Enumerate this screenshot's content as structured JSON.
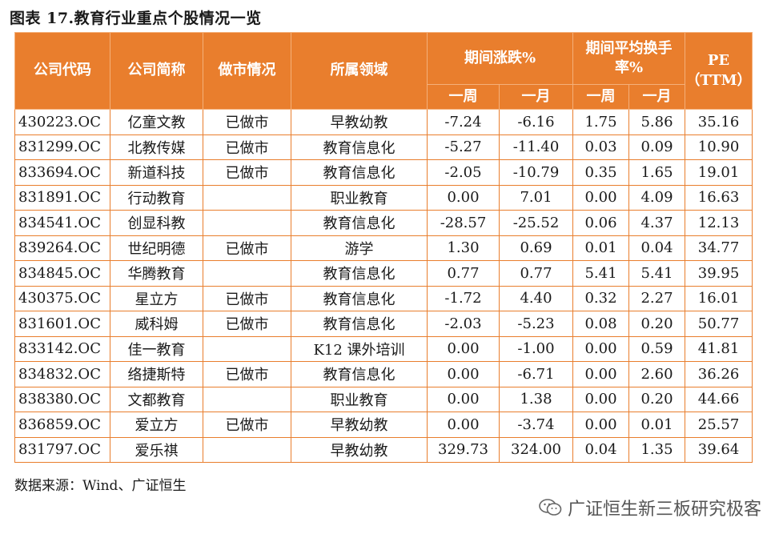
{
  "title": "图表 17.教育行业重点个股情况一览",
  "headers": {
    "code": "公司代码",
    "name": "公司简称",
    "mm": "做市情况",
    "field": "所属领域",
    "change": "期间涨跌%",
    "turnover": "期间平均换手率%",
    "pe": "PE\n（TTM）",
    "week": "一周",
    "month": "一月"
  },
  "rows": [
    {
      "code": "430223.OC",
      "name": "亿童文教",
      "mm": "已做市",
      "field": "早教幼教",
      "c_week": "-7.24",
      "c_month": "-6.16",
      "t_week": "1.75",
      "t_month": "5.86",
      "pe": "35.16"
    },
    {
      "code": "831299.OC",
      "name": "北教传媒",
      "mm": "已做市",
      "field": "教育信息化",
      "c_week": "-5.27",
      "c_month": "-11.40",
      "t_week": "0.03",
      "t_month": "0.09",
      "pe": "10.90"
    },
    {
      "code": "833694.OC",
      "name": "新道科技",
      "mm": "已做市",
      "field": "教育信息化",
      "c_week": "-2.05",
      "c_month": "-10.79",
      "t_week": "0.35",
      "t_month": "1.65",
      "pe": "19.01"
    },
    {
      "code": "831891.OC",
      "name": "行动教育",
      "mm": "",
      "field": "职业教育",
      "c_week": "0.00",
      "c_month": "7.01",
      "t_week": "0.00",
      "t_month": "4.09",
      "pe": "16.63"
    },
    {
      "code": "834541.OC",
      "name": "创显科教",
      "mm": "",
      "field": "教育信息化",
      "c_week": "-28.57",
      "c_month": "-25.52",
      "t_week": "0.06",
      "t_month": "4.37",
      "pe": "12.13"
    },
    {
      "code": "839264.OC",
      "name": "世纪明德",
      "mm": "已做市",
      "field": "游学",
      "c_week": "1.30",
      "c_month": "0.69",
      "t_week": "0.01",
      "t_month": "0.04",
      "pe": "34.77"
    },
    {
      "code": "834845.OC",
      "name": "华腾教育",
      "mm": "",
      "field": "教育信息化",
      "c_week": "0.77",
      "c_month": "0.77",
      "t_week": "5.41",
      "t_month": "5.41",
      "pe": "39.95"
    },
    {
      "code": "430375.OC",
      "name": "星立方",
      "mm": "已做市",
      "field": "教育信息化",
      "c_week": "-1.72",
      "c_month": "4.40",
      "t_week": "0.32",
      "t_month": "2.27",
      "pe": "16.01"
    },
    {
      "code": "831601.OC",
      "name": "威科姆",
      "mm": "已做市",
      "field": "教育信息化",
      "c_week": "-2.03",
      "c_month": "-5.23",
      "t_week": "0.08",
      "t_month": "0.20",
      "pe": "50.77"
    },
    {
      "code": "833142.OC",
      "name": "佳一教育",
      "mm": "",
      "field": "K12 课外培训",
      "c_week": "0.00",
      "c_month": "-1.00",
      "t_week": "0.00",
      "t_month": "0.59",
      "pe": "41.81"
    },
    {
      "code": "834832.OC",
      "name": "络捷斯特",
      "mm": "已做市",
      "field": "教育信息化",
      "c_week": "0.00",
      "c_month": "-6.71",
      "t_week": "0.00",
      "t_month": "2.60",
      "pe": "36.26"
    },
    {
      "code": "838380.OC",
      "name": "文都教育",
      "mm": "",
      "field": "职业教育",
      "c_week": "0.00",
      "c_month": "1.38",
      "t_week": "0.00",
      "t_month": "0.20",
      "pe": "44.66"
    },
    {
      "code": "836859.OC",
      "name": "爱立方",
      "mm": "已做市",
      "field": "早教幼教",
      "c_week": "0.00",
      "c_month": "-3.74",
      "t_week": "0.00",
      "t_month": "0.01",
      "pe": "25.57"
    },
    {
      "code": "831797.OC",
      "name": "爱乐祺",
      "mm": "",
      "field": "早教幼教",
      "c_week": "329.73",
      "c_month": "324.00",
      "t_week": "0.04",
      "t_month": "1.35",
      "pe": "39.64"
    }
  ],
  "source": "数据来源：Wind、广证恒生",
  "watermark": "广证恒生新三板研究极客",
  "colors": {
    "header_bg": "#e97e2d",
    "border": "#e97e2d"
  },
  "icons": {
    "watermark_icon": "wechat-icon"
  }
}
